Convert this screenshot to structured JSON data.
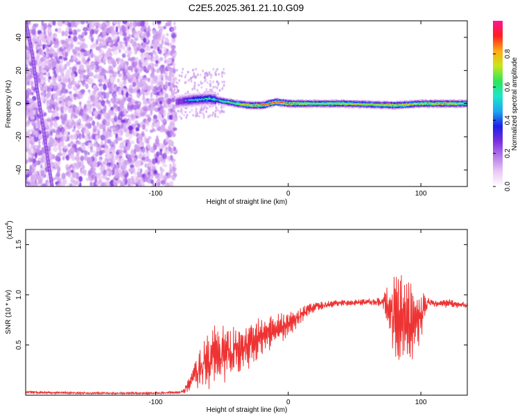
{
  "figure_title": "C2E5.2025.361.21.10.G09",
  "chart_data": [
    {
      "type": "heatmap",
      "title": "",
      "xlabel": "Height of straight line (km)",
      "ylabel": "Frequency (Hz)",
      "xlim": [
        -198,
        135
      ],
      "ylim": [
        -50,
        50
      ],
      "xticks": [
        -100,
        0,
        100
      ],
      "xtick_labels": [
        "-100",
        "0",
        "100"
      ],
      "yticks": [
        -40,
        -20,
        0,
        20,
        40
      ],
      "ytick_labels": [
        "-40",
        "-20",
        "0",
        "20",
        "40"
      ],
      "grid": false,
      "colorbar": {
        "label": "Normalized spectral amplitude",
        "range": [
          0.0,
          1.0
        ],
        "ticks": [
          0.0,
          0.2,
          0.4,
          0.6,
          0.8
        ],
        "tick_labels": [
          "0.0",
          "0.2",
          "0.4",
          "0.6",
          "0.8"
        ],
        "colors": [
          "#ffffff",
          "#e9c8f5",
          "#b57be8",
          "#7a2ee0",
          "#1e1ee8",
          "#1ea8f0",
          "#19e6c8",
          "#2ee65a",
          "#c8e619",
          "#ffaa14",
          "#ff1e1e",
          "#ff1493"
        ]
      },
      "regions": [
        {
          "name": "noise",
          "x_range": [
            -198,
            -85
          ],
          "freq_range": [
            -50,
            50
          ],
          "amplitude_range": [
            0.05,
            0.25
          ]
        },
        {
          "name": "tonal_line",
          "x_range": [
            -85,
            135
          ],
          "center_freq_hz": 0,
          "amplitude_peak": 0.95
        },
        {
          "name": "drift",
          "x": [
            -198,
            -193,
            -190,
            -186,
            -182,
            -178
          ],
          "freq_hz": [
            50,
            30,
            12,
            -8,
            -30,
            -50
          ]
        }
      ],
      "tonal_line": {
        "x": [
          -85,
          -75,
          -60,
          -50,
          -40,
          -30,
          -20,
          -10,
          0,
          20,
          40,
          60,
          80,
          100,
          120,
          135
        ],
        "center_freq_hz": [
          1,
          2,
          3,
          1.5,
          0,
          -1,
          -1,
          1,
          0,
          0,
          0,
          -0.5,
          -1,
          0,
          0,
          0
        ],
        "peak_amplitude": [
          0.4,
          0.55,
          0.6,
          0.65,
          0.7,
          0.85,
          0.9,
          0.95,
          0.9,
          0.75,
          0.8,
          0.75,
          0.85,
          0.8,
          0.9,
          0.7
        ]
      }
    },
    {
      "type": "line",
      "title": "",
      "xlabel": "Height of straight line (km)",
      "ylabel": "SNR (10 * v/v)",
      "y_multiplier_label": "(x10",
      "y_multiplier_exponent": "4",
      "y_multiplier_close": ")",
      "xlim": [
        -198,
        135
      ],
      "ylim": [
        0,
        1.65
      ],
      "xticks": [
        -100,
        0,
        100
      ],
      "xtick_labels": [
        "-100",
        "0",
        "100"
      ],
      "yticks": [
        0.5,
        1.0,
        1.5
      ],
      "ytick_labels": [
        "0.5",
        "1.0",
        "1.5"
      ],
      "grid": false,
      "series": [
        {
          "color": "#ee3333",
          "envelope": {
            "x": [
              -198,
              -150,
              -100,
              -80,
              -75,
              -70,
              -65,
              -60,
              -55,
              -50,
              -40,
              -30,
              -20,
              -10,
              0,
              10,
              20,
              30,
              40,
              50,
              60,
              70,
              75,
              80,
              85,
              90,
              95,
              100,
              105,
              110,
              115,
              120,
              125,
              130,
              135
            ],
            "mean": [
              0.03,
              0.02,
              0.02,
              0.03,
              0.1,
              0.2,
              0.3,
              0.35,
              0.42,
              0.4,
              0.45,
              0.5,
              0.6,
              0.65,
              0.7,
              0.8,
              0.88,
              0.9,
              0.92,
              0.92,
              0.93,
              0.93,
              0.9,
              0.8,
              0.75,
              0.75,
              0.72,
              0.8,
              0.92,
              0.92,
              0.92,
              0.92,
              0.91,
              0.9,
              0.9
            ],
            "spread": [
              0.015,
              0.01,
              0.01,
              0.015,
              0.08,
              0.15,
              0.25,
              0.3,
              0.3,
              0.3,
              0.25,
              0.22,
              0.2,
              0.15,
              0.12,
              0.08,
              0.05,
              0.04,
              0.03,
              0.03,
              0.03,
              0.05,
              0.2,
              0.4,
              0.5,
              0.45,
              0.3,
              0.3,
              0.05,
              0.04,
              0.04,
              0.05,
              0.04,
              0.03,
              0.03
            ]
          }
        }
      ]
    }
  ]
}
